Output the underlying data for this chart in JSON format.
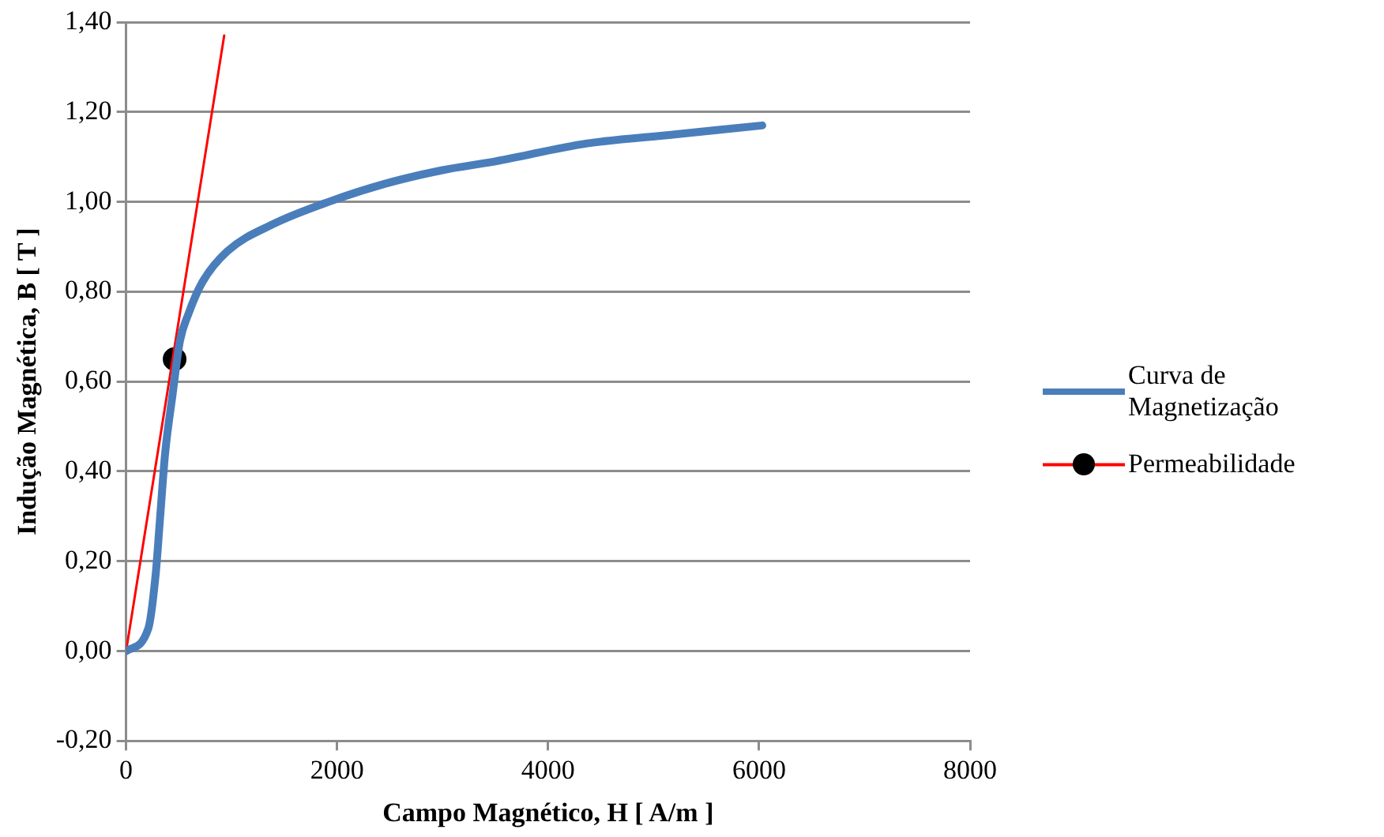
{
  "chart_data": {
    "type": "line",
    "xlabel": "Campo Magnético, H [ A/m ]",
    "ylabel": "Indução Magnética, B [ T ]",
    "xlim": [
      0,
      8000
    ],
    "xticks": [
      0,
      2000,
      4000,
      6000,
      8000
    ],
    "ylim": [
      -0.2,
      1.4
    ],
    "yticks": [
      {
        "value": -0.2,
        "label": "-0,20"
      },
      {
        "value": 0,
        "label": "0,00"
      },
      {
        "value": 0.2,
        "label": "0,20"
      },
      {
        "value": 0.4,
        "label": "0,40"
      },
      {
        "value": 0.6,
        "label": "0,60"
      },
      {
        "value": 0.8,
        "label": "0,80"
      },
      {
        "value": 1,
        "label": "1,00"
      },
      {
        "value": 1.2,
        "label": "1,20"
      },
      {
        "value": 1.4,
        "label": "1,40"
      }
    ],
    "grid": "y",
    "legend": "right",
    "marker": "none",
    "series": [
      {
        "name": "Curva de Magnetização",
        "color": "#4a7ebb",
        "x": [
          0,
          210,
          280,
          320,
          370,
          440,
          510,
          590,
          720,
          960,
          1390,
          1920,
          2450,
          2990,
          3500,
          4370,
          5200,
          6030
        ],
        "values": [
          0,
          0.05,
          0.17,
          0.29,
          0.44,
          0.57,
          0.69,
          0.75,
          0.82,
          0.89,
          0.95,
          1.0,
          1.04,
          1.07,
          1.09,
          1.13,
          1.15,
          1.17
        ]
      },
      {
        "name": "Permeabilidade",
        "color": "#ff0000",
        "x": [
          0,
          930
        ],
        "values": [
          0,
          1.37
        ]
      },
      {
        "type": "scatter",
        "color": "#000000",
        "marker": "circle",
        "x": [
          460
        ],
        "values": [
          0.65
        ]
      }
    ]
  }
}
